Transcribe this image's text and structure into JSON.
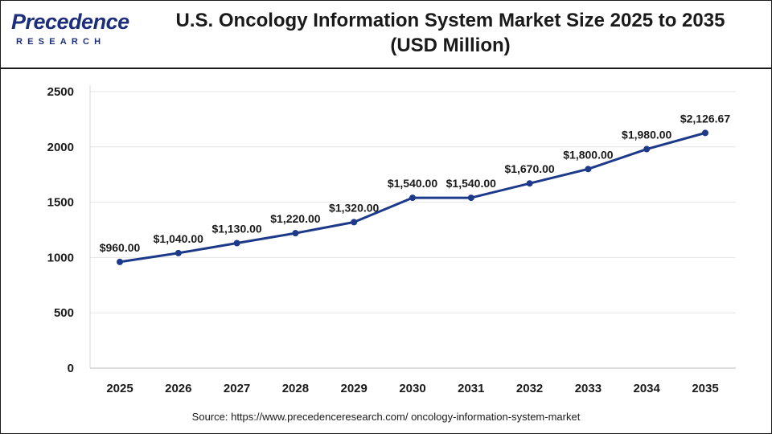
{
  "logo": {
    "word": "Precedence",
    "sub": "RESEARCH"
  },
  "title": {
    "line1": "U.S. Oncology Information System Market Size 2025 to 2035",
    "line2": "(USD Million)"
  },
  "source": "Source: https://www.precedenceresearch.com/ oncology-information-system-market",
  "colors": {
    "line": "#1d3a8a",
    "grid": "#e6e6e6",
    "text": "#1a1a1a",
    "brand": "#1d2f7a"
  },
  "chart_data": {
    "type": "line",
    "title": "U.S. Oncology Information System Market Size 2025 to 2035 (USD Million)",
    "x": [
      "2025",
      "2026",
      "2027",
      "2028",
      "2029",
      "2030",
      "2031",
      "2032",
      "2033",
      "2034",
      "2035"
    ],
    "series": [
      {
        "values": [
          960,
          1040,
          1130,
          1220,
          1320,
          1540,
          1540,
          1670,
          1800,
          1980,
          2126.67
        ],
        "labels": [
          "$960.00",
          "$1,040.00",
          "$1,130.00",
          "$1,220.00",
          "$1,320.00",
          "$1,540.00",
          "$1,540.00",
          "$1,670.00",
          "$1,800.00",
          "$1,980.00",
          "$2,126.67"
        ]
      }
    ],
    "ylim": [
      0,
      2500
    ],
    "yticks": [
      "0",
      "500",
      "1000",
      "1500",
      "2000",
      "2500"
    ],
    "grid": true,
    "legend": "none"
  }
}
